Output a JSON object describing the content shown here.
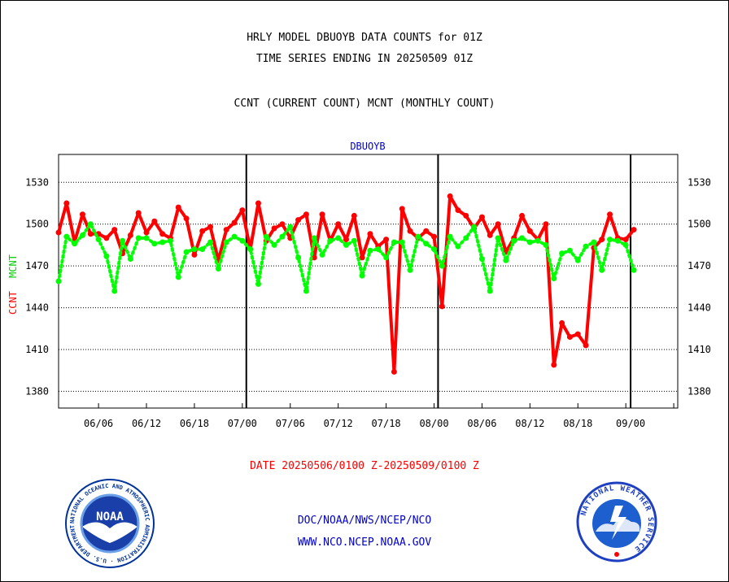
{
  "header": {
    "title_line1": "HRLY MODEL DBUOYB DATA COUNTS for 01Z",
    "title_line2": "TIME SERIES ENDING IN 20250509 01Z",
    "subtitle": "CCNT (CURRENT COUNT) MCNT (MONTHLY COUNT)"
  },
  "footer": {
    "date_range": "DATE 20250506/0100 Z-20250509/0100 Z",
    "link1": "DOC/NOAA/NWS/NCEP/NCO",
    "link2": "WWW.NCO.NCEP.NOAA.GOV",
    "noaa_logo_text": "NOAA",
    "noaa_ring_text": "NATIONAL OCEANIC AND ATMOSPHERIC ADMINISTRATION · U.S. DEPARTMENT OF COMMERCE ·",
    "nws_ring_text": "NATIONAL WEATHER SERVICE"
  },
  "colors": {
    "ccnt": "#ff0000",
    "mcnt": "#00ff00",
    "label_blue": "#0000cc",
    "footer_red": "#ff0000"
  },
  "chart_data": {
    "type": "line",
    "title": "DBUOYB",
    "ylabel_ccnt": "CCNT",
    "ylabel_mcnt": "MCNT",
    "ylim": [
      1368,
      1550
    ],
    "yticks": [
      1380,
      1410,
      1440,
      1470,
      1500,
      1530
    ],
    "ytick_labels": [
      "1380",
      "1410",
      "1440",
      "1470",
      "1500",
      "1530"
    ],
    "xlim": [
      0,
      77.5
    ],
    "xticks": [
      5,
      11,
      17,
      23,
      29,
      35,
      41,
      47,
      53,
      59,
      65,
      71,
      77
    ],
    "xtick_labels": [
      "06/06",
      "06/12",
      "06/18",
      "07/00",
      "07/06",
      "07/12",
      "07/18",
      "08/00",
      "08/06",
      "08/12",
      "08/18",
      "09/00"
    ],
    "xtick_label_positions": [
      5,
      11,
      17,
      23,
      29,
      35,
      41,
      47,
      53,
      59,
      65,
      71.6
    ],
    "day_boundaries": [
      23.5,
      47.5,
      71.6
    ],
    "grid": true,
    "series": [
      {
        "name": "CCNT",
        "values": [
          1494,
          1515,
          1487,
          1507,
          1493,
          1493,
          1490,
          1496,
          1479,
          1492,
          1508,
          1494,
          1502,
          1493,
          1490,
          1512,
          1504,
          1478,
          1495,
          1498,
          1474,
          1496,
          1501,
          1510,
          1482,
          1515,
          1488,
          1497,
          1500,
          1490,
          1503,
          1507,
          1476,
          1507,
          1488,
          1500,
          1489,
          1506,
          1476,
          1493,
          1484,
          1489,
          1394,
          1511,
          1495,
          1490,
          1495,
          1491,
          1441,
          1520,
          1510,
          1506,
          1497,
          1505,
          1492,
          1500,
          1480,
          1490,
          1506,
          1495,
          1489,
          1500,
          1399,
          1429,
          1419,
          1421,
          1413,
          1483,
          1489,
          1507,
          1490,
          1489,
          1496
        ]
      },
      {
        "name": "MCNT",
        "values": [
          1459,
          1491,
          1486,
          1492,
          1500,
          1489,
          1477,
          1452,
          1488,
          1475,
          1490,
          1490,
          1486,
          1487,
          1488,
          1462,
          1480,
          1482,
          1482,
          1487,
          1468,
          1487,
          1491,
          1488,
          1482,
          1457,
          1491,
          1485,
          1491,
          1498,
          1476,
          1452,
          1490,
          1478,
          1488,
          1490,
          1485,
          1488,
          1463,
          1481,
          1482,
          1476,
          1487,
          1487,
          1467,
          1491,
          1486,
          1482,
          1470,
          1491,
          1484,
          1490,
          1498,
          1475,
          1452,
          1490,
          1474,
          1488,
          1490,
          1487,
          1488,
          1485,
          1461,
          1479,
          1481,
          1474,
          1484,
          1487,
          1467,
          1489,
          1488,
          1485,
          1467
        ]
      }
    ]
  }
}
